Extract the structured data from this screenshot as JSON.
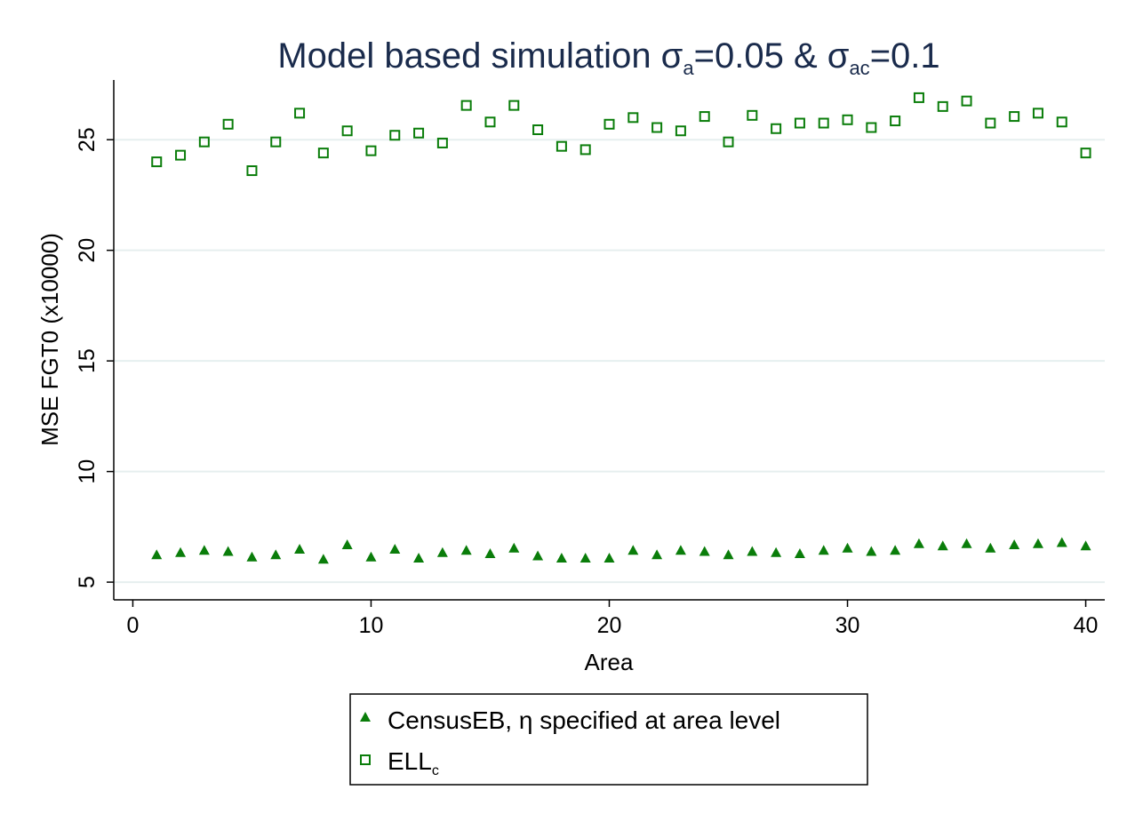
{
  "chart_data": {
    "type": "scatter",
    "title_main": "Model based simulation σ",
    "title_sub1": "a",
    "title_mid": "=0.05 & σ",
    "title_sub2": "ac",
    "title_end": "=0.1",
    "xlabel": "Area",
    "ylabel": "MSE FGT0 (x10000)",
    "xlim": [
      -0.8,
      40.8
    ],
    "ylim": [
      4.2,
      27.7
    ],
    "xticks": [
      0,
      10,
      20,
      30,
      40
    ],
    "yticks": [
      5,
      10,
      15,
      20,
      25
    ],
    "grid": true,
    "legend_placement": "bottom",
    "marker_color": "#0a7d0a",
    "grid_color": "#e6efef",
    "series": [
      {
        "name": "CensusEB, η specified at area level",
        "marker": "triangle",
        "x": [
          1,
          2,
          3,
          4,
          5,
          6,
          7,
          8,
          9,
          10,
          11,
          12,
          13,
          14,
          15,
          16,
          17,
          18,
          19,
          20,
          21,
          22,
          23,
          24,
          25,
          26,
          27,
          28,
          29,
          30,
          31,
          32,
          33,
          34,
          35,
          36,
          37,
          38,
          39,
          40
        ],
        "y": [
          6.2,
          6.3,
          6.4,
          6.35,
          6.1,
          6.2,
          6.45,
          6.0,
          6.65,
          6.1,
          6.45,
          6.05,
          6.3,
          6.4,
          6.25,
          6.5,
          6.15,
          6.05,
          6.05,
          6.05,
          6.4,
          6.2,
          6.4,
          6.35,
          6.2,
          6.35,
          6.3,
          6.25,
          6.4,
          6.5,
          6.35,
          6.4,
          6.7,
          6.6,
          6.7,
          6.5,
          6.65,
          6.7,
          6.75,
          6.6
        ]
      },
      {
        "name_main": "ELL",
        "name_sub": "c",
        "marker": "square",
        "x": [
          1,
          2,
          3,
          4,
          5,
          6,
          7,
          8,
          9,
          10,
          11,
          12,
          13,
          14,
          15,
          16,
          17,
          18,
          19,
          20,
          21,
          22,
          23,
          24,
          25,
          26,
          27,
          28,
          29,
          30,
          31,
          32,
          33,
          34,
          35,
          36,
          37,
          38,
          39,
          40
        ],
        "y": [
          24.0,
          24.3,
          24.9,
          25.7,
          23.6,
          24.9,
          26.2,
          24.4,
          25.4,
          24.5,
          25.2,
          25.3,
          24.85,
          26.55,
          25.8,
          26.55,
          25.45,
          24.7,
          24.55,
          25.7,
          26.0,
          25.55,
          25.4,
          26.05,
          24.9,
          26.1,
          25.5,
          25.75,
          25.75,
          25.9,
          25.55,
          25.85,
          26.9,
          26.5,
          26.75,
          25.75,
          26.05,
          26.2,
          25.8,
          24.4
        ]
      }
    ]
  }
}
